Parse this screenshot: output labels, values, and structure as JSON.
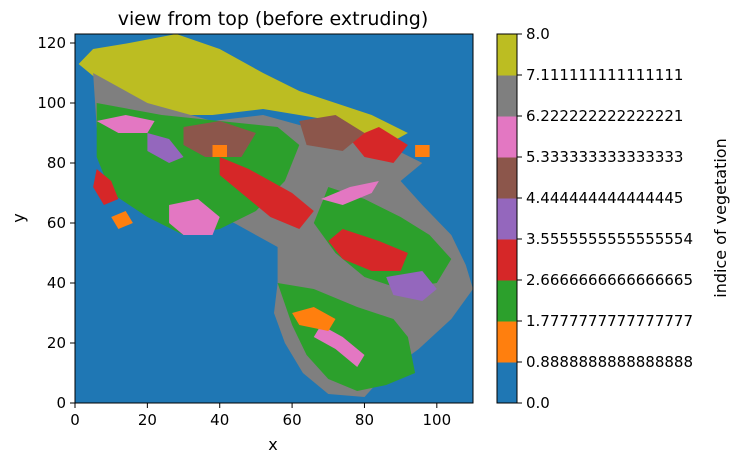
{
  "chart_data": {
    "type": "heatmap",
    "title": "view from top (before extruding)",
    "xlabel": "x",
    "ylabel": "y",
    "xlim": [
      0,
      110
    ],
    "ylim": [
      0,
      123
    ],
    "xticks": [
      "0",
      "20",
      "40",
      "60",
      "80",
      "100"
    ],
    "yticks": [
      "0",
      "20",
      "40",
      "60",
      "80",
      "100",
      "120"
    ],
    "grid": false,
    "colorbar": {
      "label": "indice of vegetation",
      "range": [
        0.0,
        8.0
      ],
      "ticks": [
        "0.0",
        "0.8888888888888888",
        "1.7777777777777777",
        "2.6666666666666665",
        "3.5555555555555554",
        "4.444444444444445",
        "5.333333333333333",
        "6.222222222222221",
        "7.111111111111111",
        "8.0"
      ],
      "colors": [
        "#1f77b4",
        "#ff7f0e",
        "#2ca02c",
        "#d62728",
        "#9467bd",
        "#8c564b",
        "#e377c2",
        "#7f7f7f",
        "#bcbd22"
      ]
    },
    "regions": [
      {
        "class": 8,
        "color": "#bcbd22",
        "polygon": [
          [
            1,
            113
          ],
          [
            5,
            118
          ],
          [
            15,
            120
          ],
          [
            28,
            123
          ],
          [
            40,
            118
          ],
          [
            52,
            110
          ],
          [
            62,
            104
          ],
          [
            82,
            96
          ],
          [
            92,
            90
          ],
          [
            86,
            86
          ],
          [
            72,
            94
          ],
          [
            52,
            98
          ],
          [
            38,
            96
          ],
          [
            26,
            96
          ],
          [
            12,
            102
          ],
          [
            4,
            110
          ]
        ]
      },
      {
        "class": 7,
        "color": "#7f7f7f",
        "polygon": [
          [
            5,
            110
          ],
          [
            20,
            100
          ],
          [
            38,
            94
          ],
          [
            52,
            96
          ],
          [
            64,
            92
          ],
          [
            72,
            94
          ],
          [
            86,
            86
          ],
          [
            96,
            80
          ],
          [
            90,
            74
          ],
          [
            96,
            66
          ],
          [
            104,
            56
          ],
          [
            108,
            46
          ],
          [
            110,
            38
          ],
          [
            104,
            28
          ],
          [
            95,
            18
          ],
          [
            86,
            10
          ],
          [
            80,
            2
          ],
          [
            70,
            3
          ],
          [
            63,
            10
          ],
          [
            58,
            20
          ],
          [
            55,
            30
          ],
          [
            56,
            40
          ],
          [
            56,
            52
          ],
          [
            44,
            60
          ],
          [
            34,
            64
          ],
          [
            22,
            68
          ],
          [
            14,
            72
          ],
          [
            8,
            80
          ],
          [
            6,
            92
          ]
        ]
      },
      {
        "class": 3,
        "color": "#2ca02c",
        "polygon": [
          [
            6,
            100
          ],
          [
            24,
            96
          ],
          [
            40,
            94
          ],
          [
            56,
            92
          ],
          [
            62,
            86
          ],
          [
            58,
            74
          ],
          [
            50,
            64
          ],
          [
            40,
            58
          ],
          [
            30,
            56
          ],
          [
            20,
            62
          ],
          [
            10,
            70
          ],
          [
            6,
            82
          ]
        ]
      },
      {
        "class": 3,
        "color": "#2ca02c",
        "polygon": [
          [
            56,
            40
          ],
          [
            66,
            38
          ],
          [
            78,
            32
          ],
          [
            88,
            28
          ],
          [
            92,
            22
          ],
          [
            94,
            10
          ],
          [
            86,
            6
          ],
          [
            78,
            4
          ],
          [
            70,
            8
          ],
          [
            64,
            16
          ],
          [
            60,
            26
          ]
        ]
      },
      {
        "class": 3,
        "color": "#2ca02c",
        "polygon": [
          [
            70,
            72
          ],
          [
            80,
            68
          ],
          [
            90,
            62
          ],
          [
            98,
            56
          ],
          [
            104,
            48
          ],
          [
            100,
            40
          ],
          [
            90,
            38
          ],
          [
            80,
            42
          ],
          [
            72,
            50
          ],
          [
            66,
            60
          ]
        ]
      },
      {
        "class": 4,
        "color": "#d62728",
        "polygon": [
          [
            40,
            82
          ],
          [
            48,
            78
          ],
          [
            60,
            70
          ],
          [
            66,
            64
          ],
          [
            62,
            58
          ],
          [
            54,
            62
          ],
          [
            46,
            70
          ],
          [
            40,
            76
          ]
        ]
      },
      {
        "class": 4,
        "color": "#d62728",
        "polygon": [
          [
            74,
            58
          ],
          [
            84,
            54
          ],
          [
            92,
            50
          ],
          [
            90,
            44
          ],
          [
            82,
            44
          ],
          [
            74,
            48
          ],
          [
            70,
            54
          ]
        ]
      },
      {
        "class": 4,
        "color": "#d62728",
        "polygon": [
          [
            76,
            88
          ],
          [
            84,
            92
          ],
          [
            92,
            86
          ],
          [
            88,
            80
          ],
          [
            80,
            82
          ]
        ]
      },
      {
        "class": 4,
        "color": "#d62728",
        "polygon": [
          [
            6,
            78
          ],
          [
            10,
            74
          ],
          [
            12,
            68
          ],
          [
            8,
            66
          ],
          [
            5,
            72
          ]
        ]
      },
      {
        "class": 6,
        "color": "#8c564b",
        "polygon": [
          [
            30,
            92
          ],
          [
            40,
            94
          ],
          [
            50,
            90
          ],
          [
            46,
            82
          ],
          [
            36,
            82
          ],
          [
            30,
            86
          ]
        ]
      },
      {
        "class": 6,
        "color": "#8c564b",
        "polygon": [
          [
            62,
            94
          ],
          [
            72,
            96
          ],
          [
            80,
            90
          ],
          [
            74,
            84
          ],
          [
            64,
            86
          ]
        ]
      },
      {
        "class": 5,
        "color": "#9467bd",
        "polygon": [
          [
            20,
            90
          ],
          [
            26,
            88
          ],
          [
            30,
            82
          ],
          [
            26,
            80
          ],
          [
            20,
            84
          ]
        ]
      },
      {
        "class": 5,
        "color": "#9467bd",
        "polygon": [
          [
            86,
            42
          ],
          [
            96,
            44
          ],
          [
            100,
            38
          ],
          [
            96,
            34
          ],
          [
            88,
            36
          ]
        ]
      },
      {
        "class": 7,
        "color": "#e377c2",
        "polygon": [
          [
            6,
            94
          ],
          [
            14,
            96
          ],
          [
            22,
            94
          ],
          [
            20,
            90
          ],
          [
            12,
            90
          ]
        ]
      },
      {
        "class": 7,
        "color": "#e377c2",
        "polygon": [
          [
            26,
            66
          ],
          [
            34,
            68
          ],
          [
            40,
            62
          ],
          [
            38,
            56
          ],
          [
            30,
            56
          ],
          [
            26,
            60
          ]
        ]
      },
      {
        "class": 7,
        "color": "#e377c2",
        "polygon": [
          [
            68,
            68
          ],
          [
            76,
            72
          ],
          [
            84,
            74
          ],
          [
            82,
            70
          ],
          [
            74,
            66
          ]
        ]
      },
      {
        "class": 7,
        "color": "#e377c2",
        "polygon": [
          [
            68,
            26
          ],
          [
            74,
            22
          ],
          [
            80,
            16
          ],
          [
            78,
            12
          ],
          [
            72,
            18
          ],
          [
            66,
            22
          ]
        ]
      },
      {
        "class": 2,
        "color": "#ff7f0e",
        "polygon": [
          [
            10,
            62
          ],
          [
            14,
            64
          ],
          [
            16,
            60
          ],
          [
            12,
            58
          ]
        ]
      },
      {
        "class": 2,
        "color": "#ff7f0e",
        "polygon": [
          [
            60,
            30
          ],
          [
            66,
            32
          ],
          [
            72,
            28
          ],
          [
            70,
            24
          ],
          [
            62,
            26
          ]
        ]
      },
      {
        "class": 2,
        "color": "#ff7f0e",
        "polygon": [
          [
            38,
            86
          ],
          [
            42,
            86
          ],
          [
            42,
            82
          ],
          [
            38,
            82
          ]
        ]
      },
      {
        "class": 2,
        "color": "#ff7f0e",
        "polygon": [
          [
            94,
            86
          ],
          [
            98,
            86
          ],
          [
            98,
            82
          ],
          [
            94,
            82
          ]
        ]
      }
    ]
  }
}
